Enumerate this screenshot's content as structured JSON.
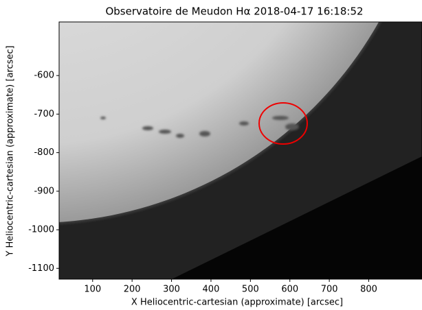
{
  "chart_data": {
    "type": "image",
    "title": "Observatoire de Meudon Hα 2018-04-17 16:18:52",
    "xlabel": "X Heliocentric-cartesian (approximate) [arcsec]",
    "ylabel": "Y Heliocentric-cartesian (approximate) [arcsec]",
    "xlim": [
      15,
      935
    ],
    "xticks": [
      100,
      200,
      300,
      400,
      500,
      600,
      700,
      800
    ],
    "ylim": [
      -1128,
      -461
    ],
    "yticks": [
      -600,
      -700,
      -800,
      -900,
      -1000,
      -1100
    ]
  }
}
